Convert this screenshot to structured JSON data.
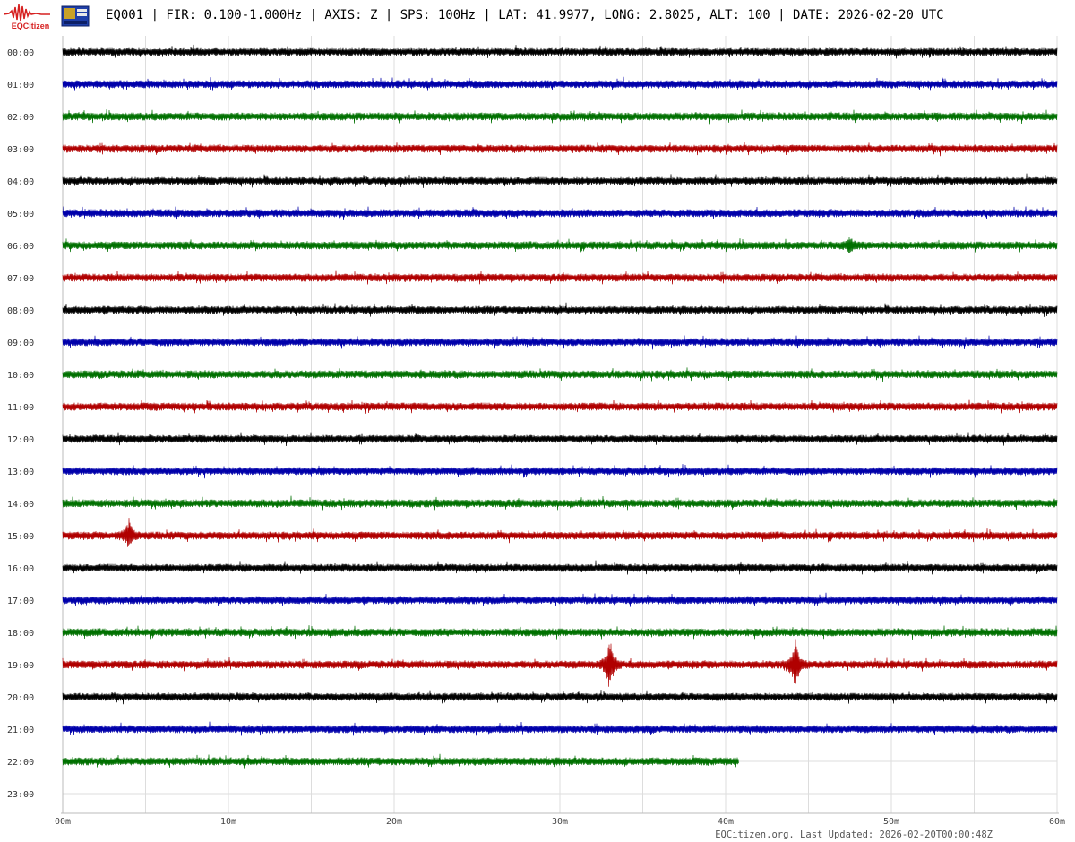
{
  "header": {
    "logo_text": "EQCitizen",
    "title": "EQ001 | FIR: 0.100-1.000Hz | AXIS: Z | SPS: 100Hz | LAT: 41.9977, LONG: 2.8025, ALT: 100 | DATE: 2026-02-20 UTC"
  },
  "footer": {
    "text": "EQCitizen.org. Last Updated: 2026-02-20T00:00:48Z"
  },
  "colors": {
    "black": "#000000",
    "blue": "#0000aa",
    "green": "#007000",
    "red": "#b00000",
    "grid": "#dddddd"
  },
  "chart_data": {
    "type": "line",
    "title": "",
    "xlabel": "",
    "ylabel": "",
    "x_ticks": [
      "00m",
      "10m",
      "20m",
      "30m",
      "40m",
      "50m",
      "60m"
    ],
    "xlim": [
      0,
      60
    ],
    "grid": true,
    "series": [
      {
        "label": "00:00",
        "color": "#000000",
        "end_min": 60,
        "events": []
      },
      {
        "label": "01:00",
        "color": "#0000aa",
        "end_min": 60,
        "events": []
      },
      {
        "label": "02:00",
        "color": "#007000",
        "end_min": 60,
        "events": []
      },
      {
        "label": "03:00",
        "color": "#b00000",
        "end_min": 60,
        "events": []
      },
      {
        "label": "04:00",
        "color": "#000000",
        "end_min": 60,
        "events": []
      },
      {
        "label": "05:00",
        "color": "#0000aa",
        "end_min": 60,
        "events": []
      },
      {
        "label": "06:00",
        "color": "#007000",
        "end_min": 60,
        "events": [
          {
            "t": 47.5,
            "amp": 8
          }
        ]
      },
      {
        "label": "07:00",
        "color": "#b00000",
        "end_min": 60,
        "events": []
      },
      {
        "label": "08:00",
        "color": "#000000",
        "end_min": 60,
        "events": []
      },
      {
        "label": "09:00",
        "color": "#0000aa",
        "end_min": 60,
        "events": []
      },
      {
        "label": "10:00",
        "color": "#007000",
        "end_min": 60,
        "events": []
      },
      {
        "label": "11:00",
        "color": "#b00000",
        "end_min": 60,
        "events": []
      },
      {
        "label": "12:00",
        "color": "#000000",
        "end_min": 60,
        "events": []
      },
      {
        "label": "13:00",
        "color": "#0000aa",
        "end_min": 60,
        "events": []
      },
      {
        "label": "14:00",
        "color": "#007000",
        "end_min": 60,
        "events": []
      },
      {
        "label": "15:00",
        "color": "#b00000",
        "end_min": 60,
        "events": [
          {
            "t": 4.0,
            "amp": 16
          }
        ]
      },
      {
        "label": "16:00",
        "color": "#000000",
        "end_min": 60,
        "events": []
      },
      {
        "label": "17:00",
        "color": "#0000aa",
        "end_min": 60,
        "events": []
      },
      {
        "label": "18:00",
        "color": "#007000",
        "end_min": 60,
        "events": []
      },
      {
        "label": "19:00",
        "color": "#b00000",
        "end_min": 60,
        "events": [
          {
            "t": 33.0,
            "amp": 32
          },
          {
            "t": 44.2,
            "amp": 30
          }
        ]
      },
      {
        "label": "20:00",
        "color": "#000000",
        "end_min": 60,
        "events": []
      },
      {
        "label": "21:00",
        "color": "#0000aa",
        "end_min": 60,
        "events": []
      },
      {
        "label": "22:00",
        "color": "#007000",
        "end_min": 40.8,
        "events": []
      },
      {
        "label": "23:00",
        "color": "#000000",
        "end_min": 0,
        "events": []
      }
    ]
  }
}
